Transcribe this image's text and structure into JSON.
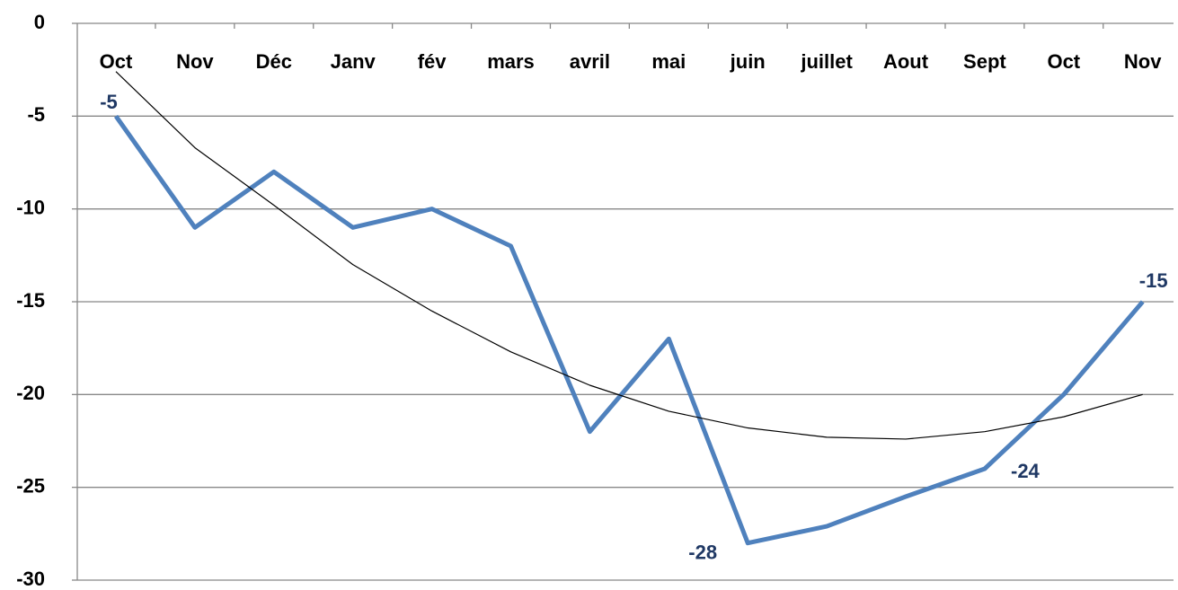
{
  "chart_data": {
    "type": "line",
    "categories": [
      "Oct",
      "Nov",
      "Déc",
      "Janv",
      "fév",
      "mars",
      "avril",
      "mai",
      "juin",
      "juillet",
      "Aout",
      "Sept",
      "Oct",
      "Nov"
    ],
    "series": [
      {
        "color": "#4f81bd",
        "values": [
          -5,
          -11,
          -8,
          -11,
          -10,
          -12,
          -22,
          -17,
          -28,
          -27.1,
          -25.5,
          -24,
          -20,
          -15
        ],
        "value_labels": [
          "-5",
          null,
          null,
          null,
          null,
          null,
          null,
          null,
          "-28",
          null,
          null,
          "-24",
          null,
          "-15"
        ]
      },
      {
        "color": "#000000",
        "values": [
          -2.6,
          -6.7,
          -9.8,
          -13,
          -15.5,
          -17.7,
          -19.5,
          -20.9,
          -21.8,
          -22.3,
          -22.4,
          -22,
          -21.2,
          -20
        ]
      }
    ],
    "ylim": [
      -30,
      0
    ],
    "yticks": [
      0,
      -5,
      -10,
      -15,
      -20,
      -25,
      -30
    ],
    "grid": true
  }
}
